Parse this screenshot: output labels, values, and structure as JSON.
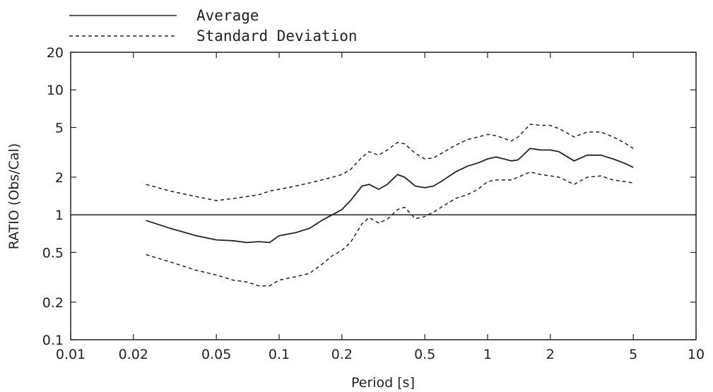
{
  "chart_data": {
    "type": "line",
    "xlabel": "Period [s]",
    "ylabel": "RATIO (Obs/Cal)",
    "x_scale": "log",
    "y_scale": "log",
    "xlim": [
      0.01,
      10
    ],
    "ylim": [
      0.1,
      20
    ],
    "x_ticks": [
      0.01,
      0.02,
      0.05,
      0.1,
      0.2,
      0.5,
      1,
      2,
      5,
      10
    ],
    "x_tick_labels": [
      "0.01",
      "0.02",
      "0.05",
      "0.1",
      "0.2",
      "0.5",
      "1",
      "2",
      "5",
      "10"
    ],
    "y_ticks": [
      0.1,
      0.2,
      0.5,
      1,
      2,
      5,
      10,
      20
    ],
    "y_tick_labels": [
      "0.1",
      "0.2",
      "0.5",
      "1",
      "2",
      "5",
      "10",
      "20"
    ],
    "grid": false,
    "legend_position": "top-left-outside",
    "legend": [
      {
        "label": "Average",
        "style": "solid"
      },
      {
        "label": "Standard Deviation",
        "style": "dashed"
      }
    ],
    "reference_line": {
      "y": 1,
      "style": "solid"
    },
    "series": [
      {
        "name": "Average",
        "style": "solid",
        "x": [
          0.023,
          0.03,
          0.04,
          0.05,
          0.06,
          0.07,
          0.08,
          0.09,
          0.1,
          0.12,
          0.14,
          0.16,
          0.18,
          0.2,
          0.22,
          0.25,
          0.27,
          0.3,
          0.33,
          0.37,
          0.4,
          0.45,
          0.5,
          0.55,
          0.6,
          0.7,
          0.8,
          0.9,
          1.0,
          1.1,
          1.3,
          1.4,
          1.6,
          1.8,
          2.0,
          2.2,
          2.6,
          3.0,
          3.5,
          4.0,
          4.5,
          5.0
        ],
        "y": [
          0.9,
          0.78,
          0.68,
          0.63,
          0.62,
          0.6,
          0.61,
          0.6,
          0.68,
          0.72,
          0.78,
          0.9,
          1.0,
          1.1,
          1.3,
          1.7,
          1.75,
          1.6,
          1.75,
          2.1,
          2.0,
          1.7,
          1.65,
          1.7,
          1.85,
          2.2,
          2.45,
          2.6,
          2.8,
          2.9,
          2.7,
          2.75,
          3.4,
          3.3,
          3.3,
          3.2,
          2.7,
          3.0,
          3.0,
          2.8,
          2.6,
          2.4
        ]
      },
      {
        "name": "Standard Deviation",
        "style": "dashed",
        "x": [
          0.023,
          0.03,
          0.04,
          0.05,
          0.06,
          0.07,
          0.08,
          0.09,
          0.1,
          0.12,
          0.14,
          0.16,
          0.18,
          0.2,
          0.22,
          0.25,
          0.27,
          0.3,
          0.33,
          0.37,
          0.4,
          0.45,
          0.5,
          0.55,
          0.6,
          0.7,
          0.8,
          0.9,
          1.0,
          1.1,
          1.3,
          1.4,
          1.6,
          1.8,
          2.0,
          2.2,
          2.6,
          3.0,
          3.5,
          4.0,
          4.5,
          5.0
        ],
        "y": [
          1.75,
          1.55,
          1.4,
          1.3,
          1.35,
          1.4,
          1.45,
          1.55,
          1.6,
          1.7,
          1.8,
          1.9,
          2.0,
          2.1,
          2.3,
          2.9,
          3.2,
          3.0,
          3.3,
          3.8,
          3.7,
          3.1,
          2.8,
          2.85,
          3.1,
          3.6,
          4.0,
          4.2,
          4.4,
          4.3,
          3.9,
          4.2,
          5.3,
          5.2,
          5.2,
          4.9,
          4.2,
          4.6,
          4.6,
          4.2,
          3.8,
          3.4
        ]
      },
      {
        "name": "Standard Deviation",
        "style": "dashed",
        "x": [
          0.023,
          0.03,
          0.04,
          0.05,
          0.06,
          0.07,
          0.08,
          0.09,
          0.1,
          0.12,
          0.14,
          0.16,
          0.18,
          0.2,
          0.22,
          0.25,
          0.27,
          0.3,
          0.33,
          0.37,
          0.4,
          0.45,
          0.5,
          0.55,
          0.6,
          0.7,
          0.8,
          0.9,
          1.0,
          1.1,
          1.3,
          1.4,
          1.6,
          1.8,
          2.0,
          2.2,
          2.6,
          3.0,
          3.5,
          4.0,
          4.5,
          5.0
        ],
        "y": [
          0.48,
          0.42,
          0.36,
          0.33,
          0.3,
          0.29,
          0.27,
          0.27,
          0.3,
          0.32,
          0.34,
          0.4,
          0.47,
          0.52,
          0.6,
          0.85,
          0.95,
          0.86,
          0.92,
          1.1,
          1.15,
          0.93,
          0.97,
          1.05,
          1.15,
          1.35,
          1.45,
          1.6,
          1.85,
          1.9,
          1.9,
          2.0,
          2.2,
          2.1,
          2.05,
          2.0,
          1.75,
          2.0,
          2.05,
          1.9,
          1.85,
          1.8
        ]
      }
    ]
  }
}
